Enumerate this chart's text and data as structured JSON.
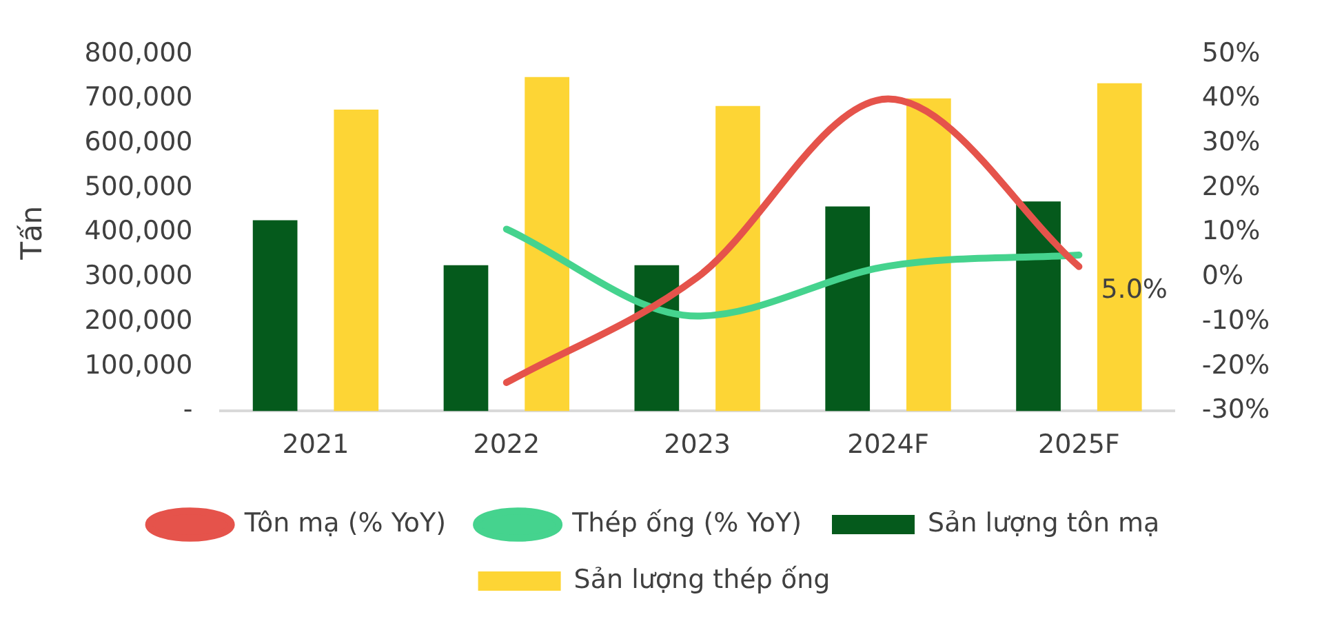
{
  "chart_data": {
    "type": "bar",
    "categories": [
      "2021",
      "2022",
      "2023",
      "2024F",
      "2025F"
    ],
    "ylabel": "Tấn",
    "series": [
      {
        "name": "Sản lượng tôn mạ",
        "color": "#055a1c",
        "values": [
          428000,
          327000,
          327000,
          459000,
          470000
        ]
      },
      {
        "name": "Sản lượng thép ống",
        "color": "#fdd535",
        "values": [
          676000,
          749000,
          684000,
          701000,
          735000
        ]
      },
      {
        "name": "Tôn mạ (% YoY)",
        "type": "line",
        "axis": "y2",
        "color": "#e5534b",
        "values": [
          null,
          -23.6,
          0,
          40,
          2.4
        ]
      },
      {
        "name": "Thép ống (% YoY)",
        "type": "line",
        "axis": "y2",
        "color": "#45d38e",
        "values": [
          null,
          10.8,
          -8.7,
          2.5,
          5.0
        ],
        "value_labels": [
          null,
          null,
          null,
          null,
          "5.0%"
        ]
      }
    ],
    "ylim": [
      0,
      800000
    ],
    "yticks": [
      {
        "value": 0,
        "label": "-"
      },
      {
        "value": 100000,
        "label": "100,000"
      },
      {
        "value": 200000,
        "label": "200,000"
      },
      {
        "value": 300000,
        "label": "300,000"
      },
      {
        "value": 400000,
        "label": "400,000"
      },
      {
        "value": 500000,
        "label": "500,000"
      },
      {
        "value": 600000,
        "label": "600,000"
      },
      {
        "value": 700000,
        "label": "700,000"
      },
      {
        "value": 800000,
        "label": "800,000"
      }
    ],
    "y2lim": [
      -30,
      50
    ],
    "y2ticks": [
      {
        "value": -30,
        "label": "-30%"
      },
      {
        "value": -20,
        "label": "-20%"
      },
      {
        "value": -10,
        "label": "-10%"
      },
      {
        "value": 0,
        "label": "0%"
      },
      {
        "value": 10,
        "label": "10%"
      },
      {
        "value": 20,
        "label": "20%"
      },
      {
        "value": 30,
        "label": "30%"
      },
      {
        "value": 40,
        "label": "40%"
      },
      {
        "value": 50,
        "label": "50%"
      }
    ],
    "grid": false,
    "legend": "bottom",
    "marker": "none",
    "line_style": "solid"
  }
}
